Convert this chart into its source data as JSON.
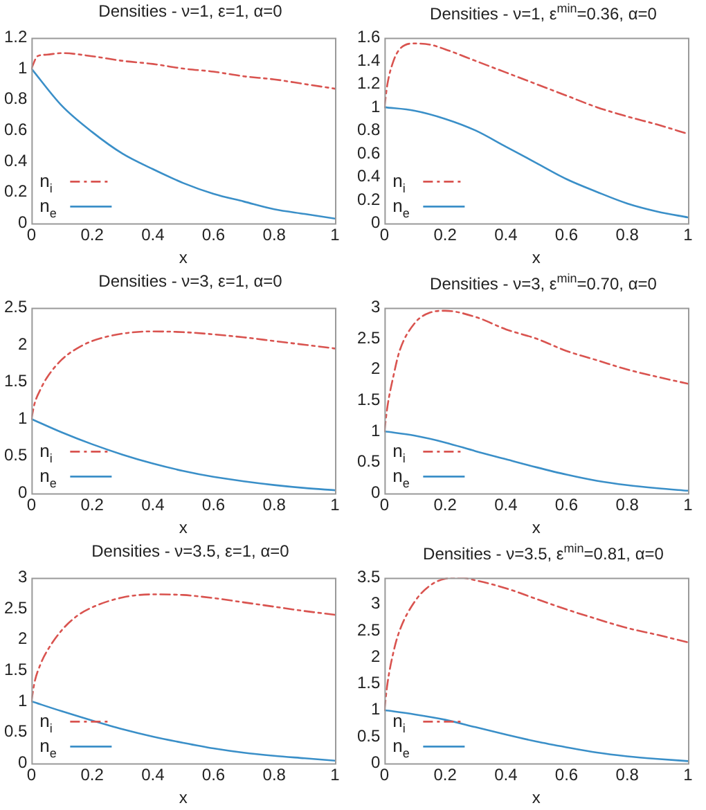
{
  "chart_data": [
    {
      "type": "line",
      "title": "Densities - ν=1, ε=1, α=0",
      "xlabel": "x",
      "xlim": [
        0,
        1
      ],
      "xticks": [
        0,
        0.2,
        0.4,
        0.6,
        0.8,
        1
      ],
      "ylim": [
        0,
        1.2
      ],
      "yticks": [
        0,
        0.2,
        0.4,
        0.6,
        0.8,
        1,
        1.2
      ],
      "grid": false,
      "legend": "bottom left",
      "marker": "none",
      "series": [
        {
          "name": "n$_{i}$",
          "color": "#d9534f",
          "line_style": "dashed",
          "x": [
            0,
            0.02,
            0.05,
            0.1,
            0.2,
            0.3,
            0.4,
            0.5,
            0.6,
            0.7,
            0.8,
            0.9,
            1
          ],
          "values": [
            1.0,
            1.08,
            1.09,
            1.1,
            1.08,
            1.05,
            1.03,
            1.0,
            0.98,
            0.95,
            0.93,
            0.9,
            0.87
          ]
        },
        {
          "name": "n$_{e}$",
          "color": "#3a8fc8",
          "line_style": "solid",
          "x": [
            0,
            0.1,
            0.2,
            0.3,
            0.4,
            0.5,
            0.6,
            0.7,
            0.8,
            0.9,
            1
          ],
          "values": [
            1,
            0.76,
            0.59,
            0.45,
            0.35,
            0.26,
            0.19,
            0.14,
            0.09,
            0.06,
            0.03
          ]
        }
      ]
    },
    {
      "type": "line",
      "title": "Densities - ν=1, ε$^{min}$=0.36, α=0",
      "xlabel": "x",
      "xlim": [
        0,
        1
      ],
      "xticks": [
        0,
        0.2,
        0.4,
        0.6,
        0.8,
        1
      ],
      "ylim": [
        0,
        1.6
      ],
      "yticks": [
        0,
        0.2,
        0.4,
        0.6,
        0.8,
        1,
        1.2,
        1.4,
        1.6
      ],
      "grid": false,
      "legend": "bottom left",
      "marker": "none",
      "series": [
        {
          "name": "n$_{i}$",
          "color": "#d9534f",
          "line_style": "dashed",
          "x": [
            0,
            0.01,
            0.03,
            0.05,
            0.1,
            0.15,
            0.2,
            0.3,
            0.4,
            0.5,
            0.6,
            0.7,
            0.8,
            0.9,
            1
          ],
          "values": [
            1.0,
            1.2,
            1.4,
            1.5,
            1.55,
            1.54,
            1.5,
            1.4,
            1.3,
            1.2,
            1.1,
            1.0,
            0.92,
            0.85,
            0.77
          ]
        },
        {
          "name": "n$_{e}$",
          "color": "#3a8fc8",
          "line_style": "solid",
          "x": [
            0,
            0.1,
            0.2,
            0.3,
            0.4,
            0.5,
            0.6,
            0.7,
            0.8,
            0.9,
            1
          ],
          "values": [
            1,
            0.97,
            0.9,
            0.8,
            0.66,
            0.52,
            0.38,
            0.27,
            0.17,
            0.1,
            0.05
          ]
        }
      ]
    },
    {
      "type": "line",
      "title": "Densities - ν=3, ε=1, α=0",
      "xlabel": "x",
      "xlim": [
        0,
        1
      ],
      "xticks": [
        0,
        0.2,
        0.4,
        0.6,
        0.8,
        1
      ],
      "ylim": [
        0,
        2.5
      ],
      "yticks": [
        0,
        0.5,
        1,
        1.5,
        2,
        2.5
      ],
      "grid": false,
      "legend": "bottom left",
      "marker": "none",
      "series": [
        {
          "name": "n$_{i}$",
          "color": "#d9534f",
          "line_style": "dashed",
          "x": [
            0,
            0.01,
            0.03,
            0.05,
            0.1,
            0.15,
            0.2,
            0.3,
            0.4,
            0.5,
            0.6,
            0.7,
            0.8,
            0.9,
            1
          ],
          "values": [
            1,
            1.2,
            1.4,
            1.55,
            1.8,
            1.95,
            2.05,
            2.15,
            2.18,
            2.17,
            2.14,
            2.1,
            2.05,
            2.0,
            1.95
          ]
        },
        {
          "name": "n$_{e}$",
          "color": "#3a8fc8",
          "line_style": "solid",
          "x": [
            0,
            0.1,
            0.2,
            0.3,
            0.4,
            0.5,
            0.6,
            0.7,
            0.8,
            0.9,
            1
          ],
          "values": [
            1,
            0.82,
            0.66,
            0.52,
            0.4,
            0.3,
            0.22,
            0.16,
            0.11,
            0.07,
            0.04
          ]
        }
      ]
    },
    {
      "type": "line",
      "title": "Densities - ν=3, ε$^{min}$=0.70, α=0",
      "xlabel": "x",
      "xlim": [
        0,
        1
      ],
      "xticks": [
        0,
        0.2,
        0.4,
        0.6,
        0.8,
        1
      ],
      "ylim": [
        0,
        3
      ],
      "yticks": [
        0,
        0.5,
        1,
        1.5,
        2,
        2.5,
        3
      ],
      "grid": false,
      "legend": "bottom left",
      "marker": "none",
      "series": [
        {
          "name": "n$_{i}$",
          "color": "#d9534f",
          "line_style": "dashed",
          "x": [
            0,
            0.01,
            0.03,
            0.05,
            0.1,
            0.15,
            0.2,
            0.3,
            0.4,
            0.5,
            0.6,
            0.7,
            0.8,
            0.9,
            1
          ],
          "values": [
            1,
            1.4,
            1.9,
            2.3,
            2.75,
            2.92,
            2.95,
            2.85,
            2.65,
            2.5,
            2.3,
            2.15,
            2.0,
            1.88,
            1.77
          ]
        },
        {
          "name": "n$_{e}$",
          "color": "#3a8fc8",
          "line_style": "solid",
          "x": [
            0,
            0.1,
            0.2,
            0.3,
            0.4,
            0.5,
            0.6,
            0.7,
            0.8,
            0.9,
            1
          ],
          "values": [
            1,
            0.93,
            0.82,
            0.68,
            0.55,
            0.42,
            0.3,
            0.2,
            0.13,
            0.08,
            0.04
          ]
        }
      ]
    },
    {
      "type": "line",
      "title": "Densities - ν=3.5, ε=1, α=0",
      "xlabel": "x",
      "xlim": [
        0,
        1
      ],
      "xticks": [
        0,
        0.2,
        0.4,
        0.6,
        0.8,
        1
      ],
      "ylim": [
        0,
        3
      ],
      "yticks": [
        0,
        0.5,
        1,
        1.5,
        2,
        2.5,
        3
      ],
      "grid": false,
      "legend": "bottom left",
      "marker": "none",
      "series": [
        {
          "name": "n$_{i}$",
          "color": "#d9534f",
          "line_style": "dashed",
          "x": [
            0,
            0.01,
            0.03,
            0.05,
            0.1,
            0.15,
            0.2,
            0.3,
            0.4,
            0.5,
            0.6,
            0.7,
            0.8,
            0.9,
            1
          ],
          "values": [
            1,
            1.3,
            1.6,
            1.8,
            2.15,
            2.38,
            2.52,
            2.68,
            2.73,
            2.72,
            2.67,
            2.6,
            2.53,
            2.46,
            2.4
          ]
        },
        {
          "name": "n$_{e}$",
          "color": "#3a8fc8",
          "line_style": "solid",
          "x": [
            0,
            0.1,
            0.2,
            0.3,
            0.4,
            0.5,
            0.6,
            0.7,
            0.8,
            0.9,
            1
          ],
          "values": [
            1,
            0.84,
            0.69,
            0.55,
            0.43,
            0.33,
            0.24,
            0.17,
            0.12,
            0.08,
            0.04
          ]
        }
      ]
    },
    {
      "type": "line",
      "title": "Densities - ν=3.5, ε$^{min}$=0.81, α=0",
      "xlabel": "x",
      "xlim": [
        0,
        1
      ],
      "xticks": [
        0,
        0.2,
        0.4,
        0.6,
        0.8,
        1
      ],
      "ylim": [
        0,
        3.5
      ],
      "yticks": [
        0,
        0.5,
        1,
        1.5,
        2,
        2.5,
        3,
        3.5
      ],
      "grid": false,
      "legend": "bottom left",
      "marker": "none",
      "series": [
        {
          "name": "n$_{i}$",
          "color": "#d9534f",
          "line_style": "dashed",
          "x": [
            0,
            0.01,
            0.03,
            0.05,
            0.1,
            0.15,
            0.2,
            0.25,
            0.3,
            0.4,
            0.5,
            0.6,
            0.7,
            0.8,
            0.9,
            1
          ],
          "values": [
            1,
            1.5,
            2.1,
            2.5,
            3.05,
            3.35,
            3.48,
            3.5,
            3.45,
            3.3,
            3.1,
            2.9,
            2.72,
            2.55,
            2.42,
            2.28
          ]
        },
        {
          "name": "n$_{e}$",
          "color": "#3a8fc8",
          "line_style": "solid",
          "x": [
            0,
            0.1,
            0.2,
            0.3,
            0.4,
            0.5,
            0.6,
            0.7,
            0.8,
            0.9,
            1
          ],
          "values": [
            1,
            0.92,
            0.82,
            0.68,
            0.54,
            0.41,
            0.3,
            0.2,
            0.13,
            0.08,
            0.04
          ]
        }
      ]
    }
  ]
}
